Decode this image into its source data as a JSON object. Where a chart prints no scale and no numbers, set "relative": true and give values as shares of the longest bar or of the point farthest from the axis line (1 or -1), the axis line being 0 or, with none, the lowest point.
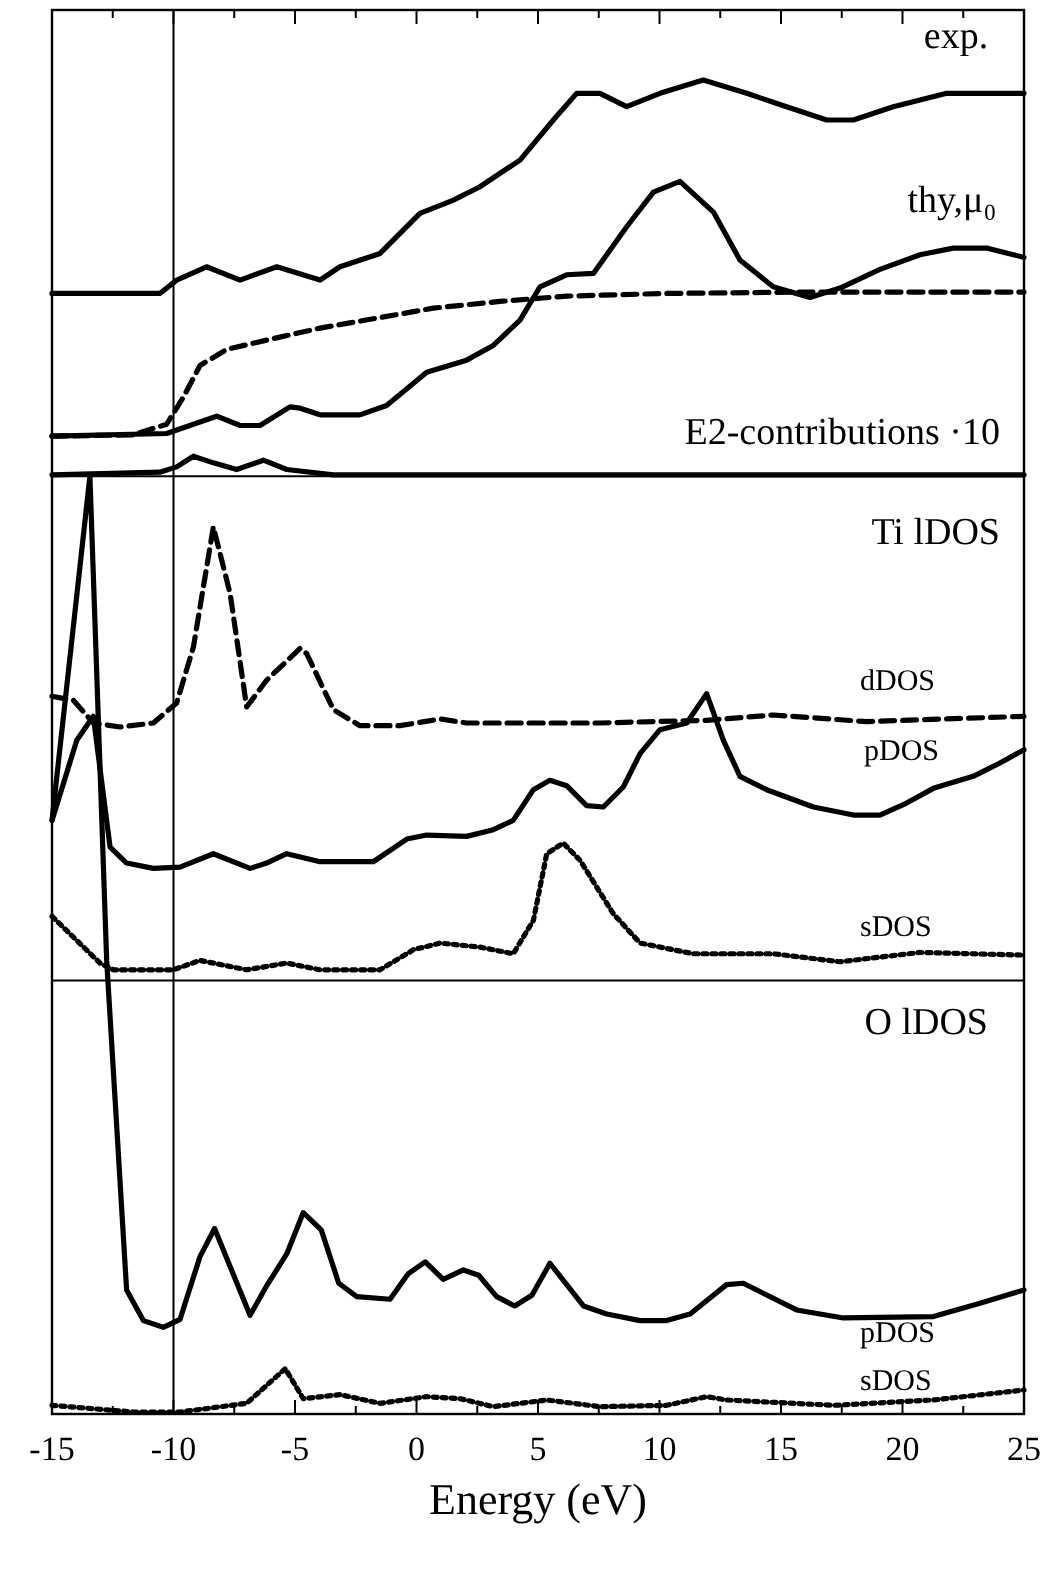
{
  "chart_data": {
    "type": "line",
    "relative": true,
    "xlabel": "Energy (eV)",
    "xlim": [
      -15,
      25
    ],
    "xticks": [
      -15,
      {
        "value": -12.5,
        "label": null
      },
      -10,
      {
        "value": -7.5,
        "label": null
      },
      -5,
      {
        "value": -2.5,
        "label": null
      },
      0,
      {
        "value": 2.5,
        "label": null
      },
      5,
      {
        "value": 7.5,
        "label": null
      },
      10,
      {
        "value": 12.5,
        "label": null
      },
      15,
      {
        "value": 17.5,
        "label": null
      },
      20,
      {
        "value": 22.5,
        "label": null
      },
      25
    ],
    "annotations": [
      "E2-contributions ·10",
      "Ti lDOS",
      "O lDOS"
    ],
    "ref_lines": [
      {
        "axis": "x",
        "value": -10,
        "color": "#000000"
      },
      {
        "axis": "y",
        "value": 0.703,
        "color": "#000000"
      },
      {
        "axis": "y",
        "value": 0.325,
        "color": "#000000"
      }
    ],
    "series": [
      {
        "name": "exp.",
        "color": "#000000",
        "line_style": "solid",
        "x": [
          -15,
          -12.75,
          -10.56,
          -9.87,
          -8.64,
          -7.26,
          -5.75,
          -3.97,
          -3.15,
          -1.5,
          0.14,
          1.52,
          2.61,
          4.26,
          5.63,
          6.59,
          7.55,
          8.65,
          10.02,
          11.8,
          13.59,
          15.23,
          16.88,
          17.98,
          19.62,
          21.82,
          24.01,
          25
        ],
        "values": [
          0.84,
          0.84,
          0.84,
          0.85,
          0.86,
          0.85,
          0.86,
          0.85,
          0.86,
          0.87,
          0.9,
          0.91,
          0.92,
          0.94,
          0.97,
          0.99,
          0.99,
          0.98,
          0.99,
          1,
          0.99,
          0.98,
          0.97,
          0.97,
          0.98,
          0.99,
          0.99,
          0.99
        ]
      },
      {
        "name": "thy,μ₀",
        "color": "#000000",
        "line_style": "solid",
        "x": [
          -15,
          -10.28,
          -9.18,
          -8.22,
          -7.26,
          -6.44,
          -5.21,
          -4.79,
          -3.97,
          -2.33,
          -1.23,
          0.42,
          2.06,
          3.16,
          4.26,
          5.08,
          6.18,
          7.28,
          8.65,
          9.75,
          10.84,
          12.22,
          13.31,
          14.68,
          16.19,
          17.43,
          19.07,
          20.72,
          22.09,
          23.46,
          25
        ],
        "values": [
          0.733,
          0.735,
          0.742,
          0.748,
          0.741,
          0.741,
          0.755,
          0.754,
          0.749,
          0.749,
          0.756,
          0.781,
          0.79,
          0.801,
          0.82,
          0.845,
          0.854,
          0.855,
          0.89,
          0.916,
          0.924,
          0.901,
          0.865,
          0.845,
          0.837,
          0.844,
          0.858,
          0.869,
          0.874,
          0.874,
          0.867
        ]
      },
      {
        "color": "#000000",
        "line_style": "dashed",
        "x": [
          -15,
          -11.65,
          -10.28,
          -9.6,
          -8.91,
          -7.81,
          -6.17,
          -3.97,
          -1.78,
          0.69,
          3.43,
          6.18,
          10.29,
          15.78,
          25
        ],
        "values": [
          0.733,
          0.734,
          0.742,
          0.762,
          0.786,
          0.798,
          0.805,
          0.814,
          0.821,
          0.829,
          0.834,
          0.838,
          0.84,
          0.841,
          0.841
        ]
      },
      {
        "color": "#000000",
        "line_style": "solid",
        "x": [
          -15,
          -10.56,
          -9.87,
          -9.18,
          -8.36,
          -7.4,
          -6.3,
          -5.34,
          -3.42,
          2.06,
          25
        ],
        "values": [
          0.704,
          0.706,
          0.71,
          0.718,
          0.713,
          0.708,
          0.715,
          0.708,
          0.704,
          0.704,
          0.704
        ]
      },
      {
        "name": "dDOS",
        "color": "#000000",
        "line_style": "dashed",
        "x": [
          -15,
          -14.12,
          -13.3,
          -12.2,
          -10.83,
          -9.87,
          -9.18,
          -8.36,
          -7.67,
          -6.99,
          -6.17,
          -4.79,
          -4.52,
          -3.42,
          -2.33,
          -0.68,
          0.97,
          2.06,
          7.55,
          11.94,
          14.68,
          18.53,
          25
        ],
        "values": [
          0.538,
          0.535,
          0.518,
          0.515,
          0.518,
          0.533,
          0.575,
          0.665,
          0.615,
          0.53,
          0.55,
          0.574,
          0.57,
          0.528,
          0.516,
          0.516,
          0.521,
          0.518,
          0.518,
          0.52,
          0.524,
          0.519,
          0.523
        ]
      },
      {
        "name": "pDOS",
        "color": "#000000",
        "line_style": "solid",
        "x": [
          -15,
          -13.98,
          -13.3,
          -12.61,
          -11.93,
          -10.83,
          -9.73,
          -8.36,
          -6.85,
          -6.17,
          -5.34,
          -3.97,
          -1.78,
          -0.4,
          0.42,
          2.06,
          3.16,
          3.98,
          4.81,
          5.49,
          6.18,
          7,
          7.69,
          8.51,
          9.2,
          10.02,
          11.12,
          11.94,
          12.63,
          13.31,
          14.41,
          16.33,
          17.98,
          19.07,
          20.17,
          21.27,
          22.91,
          24.01,
          25
        ],
        "values": [
          0.445,
          0.505,
          0.523,
          0.425,
          0.413,
          0.409,
          0.41,
          0.42,
          0.409,
          0.413,
          0.42,
          0.414,
          0.414,
          0.431,
          0.434,
          0.433,
          0.438,
          0.445,
          0.468,
          0.475,
          0.471,
          0.456,
          0.455,
          0.47,
          0.495,
          0.513,
          0.518,
          0.54,
          0.505,
          0.478,
          0.468,
          0.455,
          0.449,
          0.449,
          0.458,
          0.469,
          0.478,
          0.488,
          0.498
        ]
      },
      {
        "name": "sDOS",
        "color": "#000000",
        "line_style": "dotted",
        "x": [
          -15,
          -13.02,
          -12.48,
          -10.01,
          -8.91,
          -6.99,
          -5.34,
          -3.97,
          -1.5,
          -0.13,
          0.97,
          2.61,
          3.98,
          4.81,
          5.36,
          6.04,
          6.73,
          8.1,
          9.2,
          11.39,
          14.68,
          17.43,
          20.72,
          25
        ],
        "values": [
          0.373,
          0.338,
          0.333,
          0.333,
          0.34,
          0.333,
          0.338,
          0.333,
          0.333,
          0.348,
          0.353,
          0.35,
          0.345,
          0.37,
          0.42,
          0.428,
          0.415,
          0.375,
          0.353,
          0.345,
          0.345,
          0.339,
          0.346,
          0.344
        ]
      },
      {
        "name": "pDOS",
        "color": "#000000",
        "line_style": "solid",
        "x": [
          -15,
          -13.44,
          -12.75,
          -11.93,
          -11.24,
          -10.42,
          -9.73,
          -8.91,
          -8.31,
          -6.85,
          -6.17,
          -5.34,
          -4.66,
          -3.92,
          -3.2,
          -2.46,
          -1.09,
          -0.35,
          0.36,
          1.1,
          1.93,
          2.56,
          3.3,
          4.04,
          4.75,
          5.49,
          6.87,
          7.83,
          9.2,
          10.29,
          11.26,
          12.76,
          13.45,
          15.64,
          17.57,
          21.27,
          23.19,
          25
        ],
        "values": [
          0.445,
          0.703,
          0.34,
          0.093,
          0.07,
          0.065,
          0.071,
          0.118,
          0.139,
          0.074,
          0.096,
          0.12,
          0.151,
          0.138,
          0.098,
          0.088,
          0.086,
          0.105,
          0.114,
          0.101,
          0.108,
          0.104,
          0.088,
          0.081,
          0.089,
          0.113,
          0.081,
          0.075,
          0.07,
          0.07,
          0.075,
          0.097,
          0.098,
          0.078,
          0.072,
          0.073,
          0.083,
          0.093
        ]
      },
      {
        "name": "sDOS",
        "color": "#000000",
        "line_style": "dotted",
        "x": [
          -15,
          -11.65,
          -9.73,
          -6.99,
          -5.4,
          -4.66,
          -3.15,
          -1.5,
          0.42,
          1.79,
          3.16,
          5.36,
          7.55,
          10.29,
          11.94,
          12.76,
          17.16,
          21.27,
          25
        ],
        "values": [
          0.0065,
          0.0015,
          0.0015,
          0.008,
          0.034,
          0.0115,
          0.0145,
          0.008,
          0.013,
          0.0115,
          0.0055,
          0.0105,
          0.0055,
          0.0065,
          0.013,
          0.0105,
          0.0065,
          0.0105,
          0.018
        ]
      }
    ]
  }
}
